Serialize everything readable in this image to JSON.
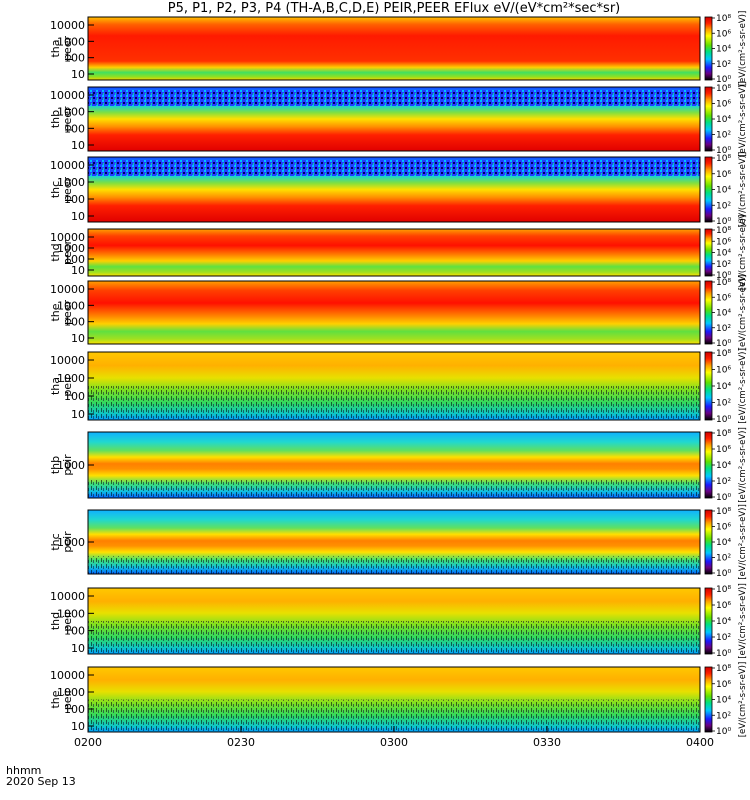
{
  "chart_data": {
    "type": "heatmap",
    "title": "P5, P1, P2, P3, P4 (TH-A,B,C,D,E) PEIR,PEER EFlux eV/(eV*cm²*sec*sr)",
    "x_ticks": [
      "0200",
      "0230",
      "0300",
      "0330",
      "0400"
    ],
    "x_range": [
      "0200",
      "0400"
    ],
    "x_label_lines": [
      "hhmm",
      "2020 Sep 13"
    ],
    "colorbar_ticks": [
      "10⁰",
      "10²",
      "10⁴",
      "10⁶",
      "10⁸"
    ],
    "colorbar_label": "[eV/(cm²-s-sr-eV)]",
    "panels": [
      {
        "probe": "tha",
        "species": "peer",
        "y_ticks": [
          "10000",
          "1000",
          "100",
          "10"
        ]
      },
      {
        "probe": "thb",
        "species": "peer",
        "y_ticks": [
          "10000",
          "1000",
          "100",
          "10"
        ]
      },
      {
        "probe": "thc",
        "species": "peer",
        "y_ticks": [
          "10000",
          "1000",
          "100",
          "10"
        ]
      },
      {
        "probe": "thd",
        "species": "peer",
        "y_ticks": [
          "10000",
          "1000",
          "100",
          "10"
        ]
      },
      {
        "probe": "the",
        "species": "peer",
        "y_ticks": [
          "10000",
          "1000",
          "100",
          "10"
        ]
      },
      {
        "probe": "tha",
        "species": "peir",
        "y_ticks": [
          "10000",
          "1000",
          "100",
          "10"
        ]
      },
      {
        "probe": "thb",
        "species": "peir",
        "y_ticks": [
          "1000"
        ]
      },
      {
        "probe": "thc",
        "species": "peir",
        "y_ticks": [
          "1000"
        ]
      },
      {
        "probe": "thd",
        "species": "peir",
        "y_ticks": [
          "10000",
          "1000",
          "100",
          "10"
        ]
      },
      {
        "probe": "the",
        "species": "peir",
        "y_ticks": [
          "10000",
          "1000",
          "100",
          "10"
        ]
      }
    ],
    "y_scale": "log"
  }
}
